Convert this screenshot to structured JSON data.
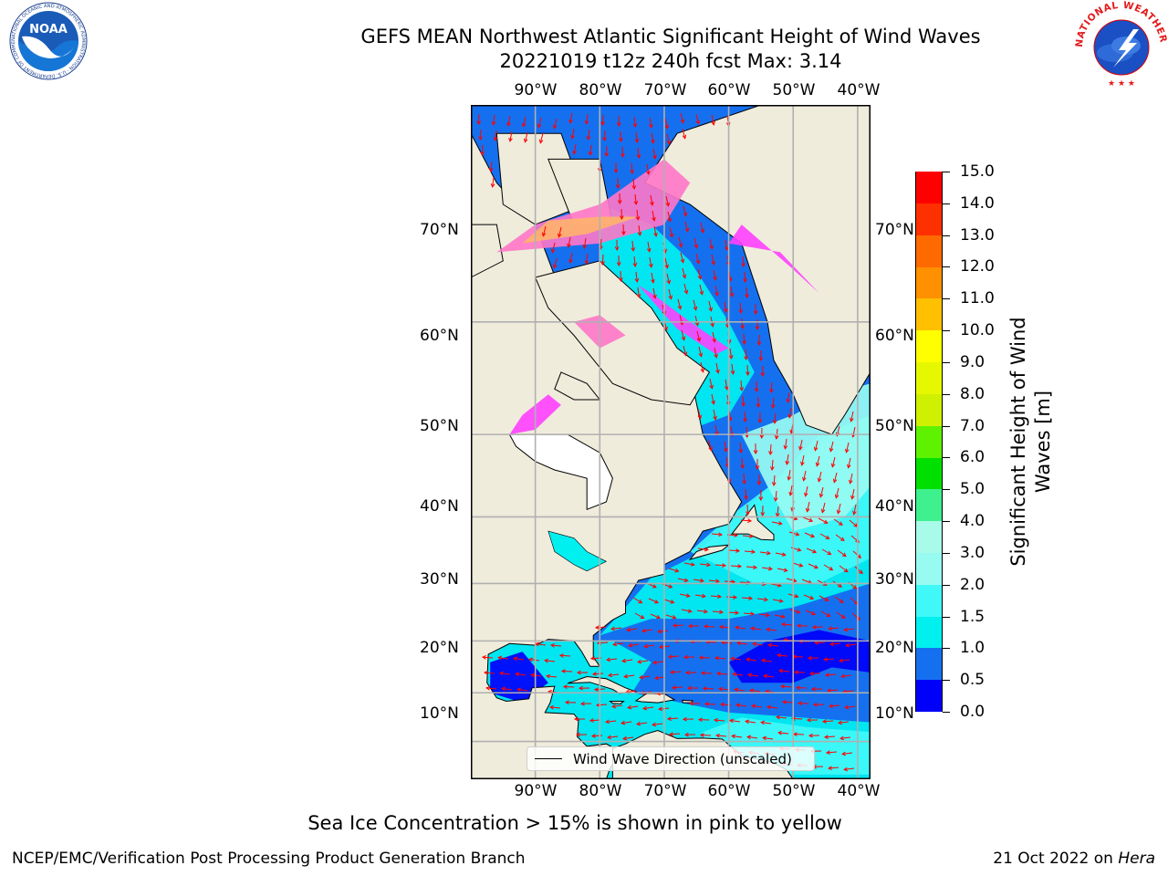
{
  "title_line1": "GEFS MEAN Northwest Atlantic Significant Height of Wind Waves",
  "title_line2": "20221019 t12z 240h fcst   Max: 3.14",
  "logos": {
    "noaa": {
      "text": "NOAA",
      "ring_text": "NATIONAL OCEANIC AND ATMOSPHERIC ADMINISTRATION · U.S. DEPARTMENT OF COMMERCE"
    },
    "nws": {
      "ring_text": "NATIONAL WEATHER SERVICE"
    }
  },
  "map": {
    "projection": "mercator",
    "lon_range": [
      -100,
      -38
    ],
    "lat_range": [
      2,
      81
    ],
    "lon_ticks": [
      "90°W",
      "80°W",
      "70°W",
      "60°W",
      "50°W",
      "40°W"
    ],
    "lat_ticks": [
      "10°N",
      "20°N",
      "30°N",
      "40°N",
      "50°N",
      "60°N",
      "70°N"
    ],
    "grid": true,
    "ocean_field": "significant_height_of_wind_waves",
    "overlay": "wind_wave_direction_arrows",
    "arrow_color": "#ff0000",
    "land_color": "#efecdc",
    "legend": {
      "label": "Wind Wave Direction (unscaled)",
      "placement": "lower-center"
    }
  },
  "colorbar": {
    "title_line1": "Significant Height of Wind",
    "title_line2": "Waves [m]",
    "ticks": [
      "0.0",
      "0.5",
      "1.0",
      "1.5",
      "2.0",
      "3.0",
      "4.0",
      "5.0",
      "6.0",
      "7.0",
      "8.0",
      "9.0",
      "10.0",
      "11.0",
      "12.0",
      "13.0",
      "14.0",
      "15.0"
    ],
    "colors": [
      "#0000fa",
      "#1570f0",
      "#00f0f0",
      "#40f8f8",
      "#98fbf2",
      "#a9fbe9",
      "#3ef08e",
      "#00e000",
      "#5ef200",
      "#cff000",
      "#e6f800",
      "#ffff00",
      "#ffc000",
      "#ff9000",
      "#ff6a00",
      "#ff3000",
      "#ff0000"
    ]
  },
  "sea_ice_note": "Sea Ice Concentration > 15% is shown in pink to yellow",
  "footer_left": "NCEP/EMC/Verification Post Processing Product Generation Branch",
  "footer_right_prefix": "21 Oct 2022 on ",
  "footer_right_machine": "Hera"
}
